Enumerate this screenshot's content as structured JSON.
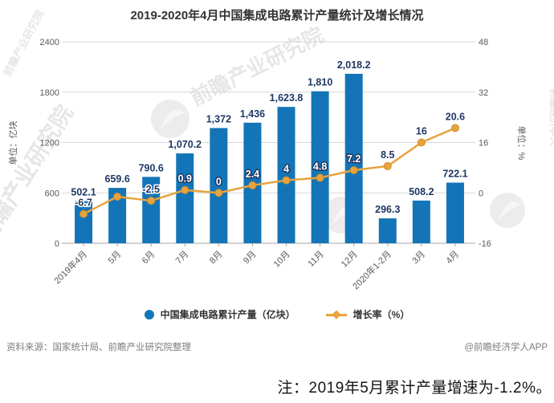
{
  "title": "2019-2020年4月中国集成电路累计产量统计及增长情况",
  "chart_data": {
    "type": "bar",
    "subtype": "bar-line-combo",
    "categories": [
      "2019年4月",
      "5月",
      "6月",
      "7月",
      "8月",
      "9月",
      "10月",
      "11月",
      "12月",
      "2020年1-2月",
      "3月",
      "4月"
    ],
    "series": [
      {
        "name": "中国集成电路累计产量（亿块）",
        "type": "bar",
        "axis": "left",
        "values": [
          502.1,
          659.6,
          790.6,
          1070.2,
          1372,
          1436,
          1623.8,
          1810,
          2018.2,
          296.3,
          508.2,
          722.1
        ],
        "labels": [
          "502.1",
          "659.6",
          "790.6",
          "1,070.2",
          "1,372",
          "1,436",
          "1,623.8",
          "1,810",
          "2,018.2",
          "296.3",
          "508.2",
          "722.1"
        ]
      },
      {
        "name": "增长率（%）",
        "type": "line",
        "axis": "right",
        "values": [
          -6.7,
          -1.2,
          -2.5,
          0.9,
          0,
          2.4,
          4,
          4.8,
          7.2,
          8.5,
          16,
          20.6
        ],
        "labels": [
          "-6.7",
          "",
          "-2.5",
          "0.9",
          "0",
          "2.4",
          "4",
          "4.8",
          "7.2",
          "8.5",
          "16",
          "20.6"
        ],
        "labels_inverted": [
          false,
          false,
          false,
          true,
          true,
          true,
          true,
          true,
          true,
          false,
          false,
          false
        ]
      }
    ],
    "left_axis": {
      "label": "单位：亿块",
      "ticks": [
        0,
        600,
        1200,
        1800,
        2400
      ],
      "range": [
        0,
        2400
      ]
    },
    "right_axis": {
      "label": "单位：%",
      "ticks": [
        -16,
        0,
        16,
        32,
        48
      ],
      "range": [
        -16,
        48
      ]
    },
    "colors": {
      "bar": "#1375B7",
      "line": "#E8A33D",
      "marker_stroke": "#D18E2A",
      "grid": "#D8D8D8",
      "baseline": "#A6A6A6"
    },
    "grid": true,
    "legend_position": "bottom"
  },
  "legend": {
    "items": [
      {
        "label": "中国集成电路累计产量（亿块）",
        "marker": "circle",
        "color": "#1375B7"
      },
      {
        "label": "增长率（%）",
        "marker": "line-diamond",
        "color": "#E8A33D"
      }
    ]
  },
  "footer": {
    "source": "资料来源：国家统计局、前瞻产业研究院整理",
    "credit": "@前瞻经济学人APP"
  },
  "note": "注：2019年5月累计产量增速为-1.2%。",
  "watermarks": {
    "brand": "前瞻产业研究院",
    "brand2": "前瞻经济学人"
  }
}
